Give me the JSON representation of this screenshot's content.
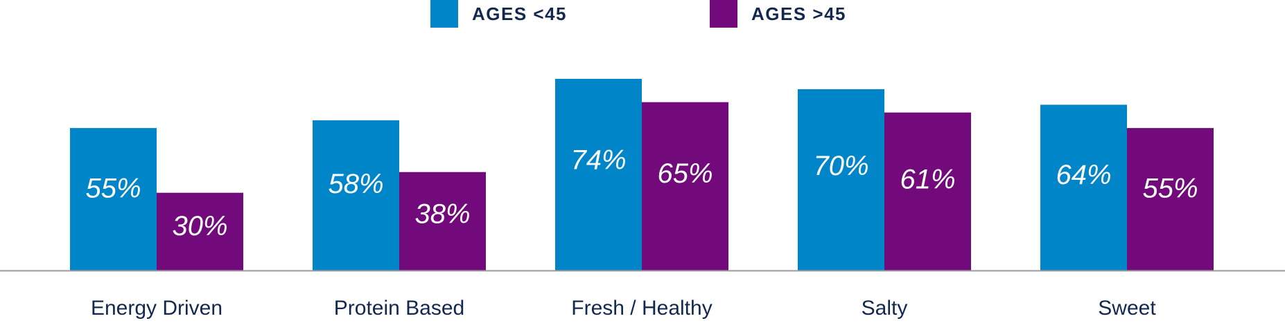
{
  "legend": {
    "items": [
      {
        "label": "AGES <45",
        "color": "#0085c9"
      },
      {
        "label": "AGES >45",
        "color": "#720a7c"
      }
    ]
  },
  "chart_data": {
    "type": "bar",
    "categories": [
      "Energy Driven",
      "Protein Based",
      "Fresh / Healthy",
      "Salty",
      "Sweet"
    ],
    "series": [
      {
        "name": "AGES <45",
        "values": [
          55,
          58,
          74,
          70,
          64
        ],
        "labels": [
          "55%",
          "58%",
          "74%",
          "70%",
          "64%"
        ],
        "color": "#0085c9"
      },
      {
        "name": "AGES >45",
        "values": [
          30,
          38,
          65,
          61,
          55
        ],
        "labels": [
          "30%",
          "38%",
          "65%",
          "61%",
          "55%"
        ],
        "color": "#720a7c"
      }
    ],
    "ylim": [
      0,
      100
    ],
    "grid": false,
    "legend_position": "top-center",
    "colors": {
      "axis": "#9a9a9a",
      "category_text": "#13284f",
      "value_text": "#ffffff"
    }
  }
}
